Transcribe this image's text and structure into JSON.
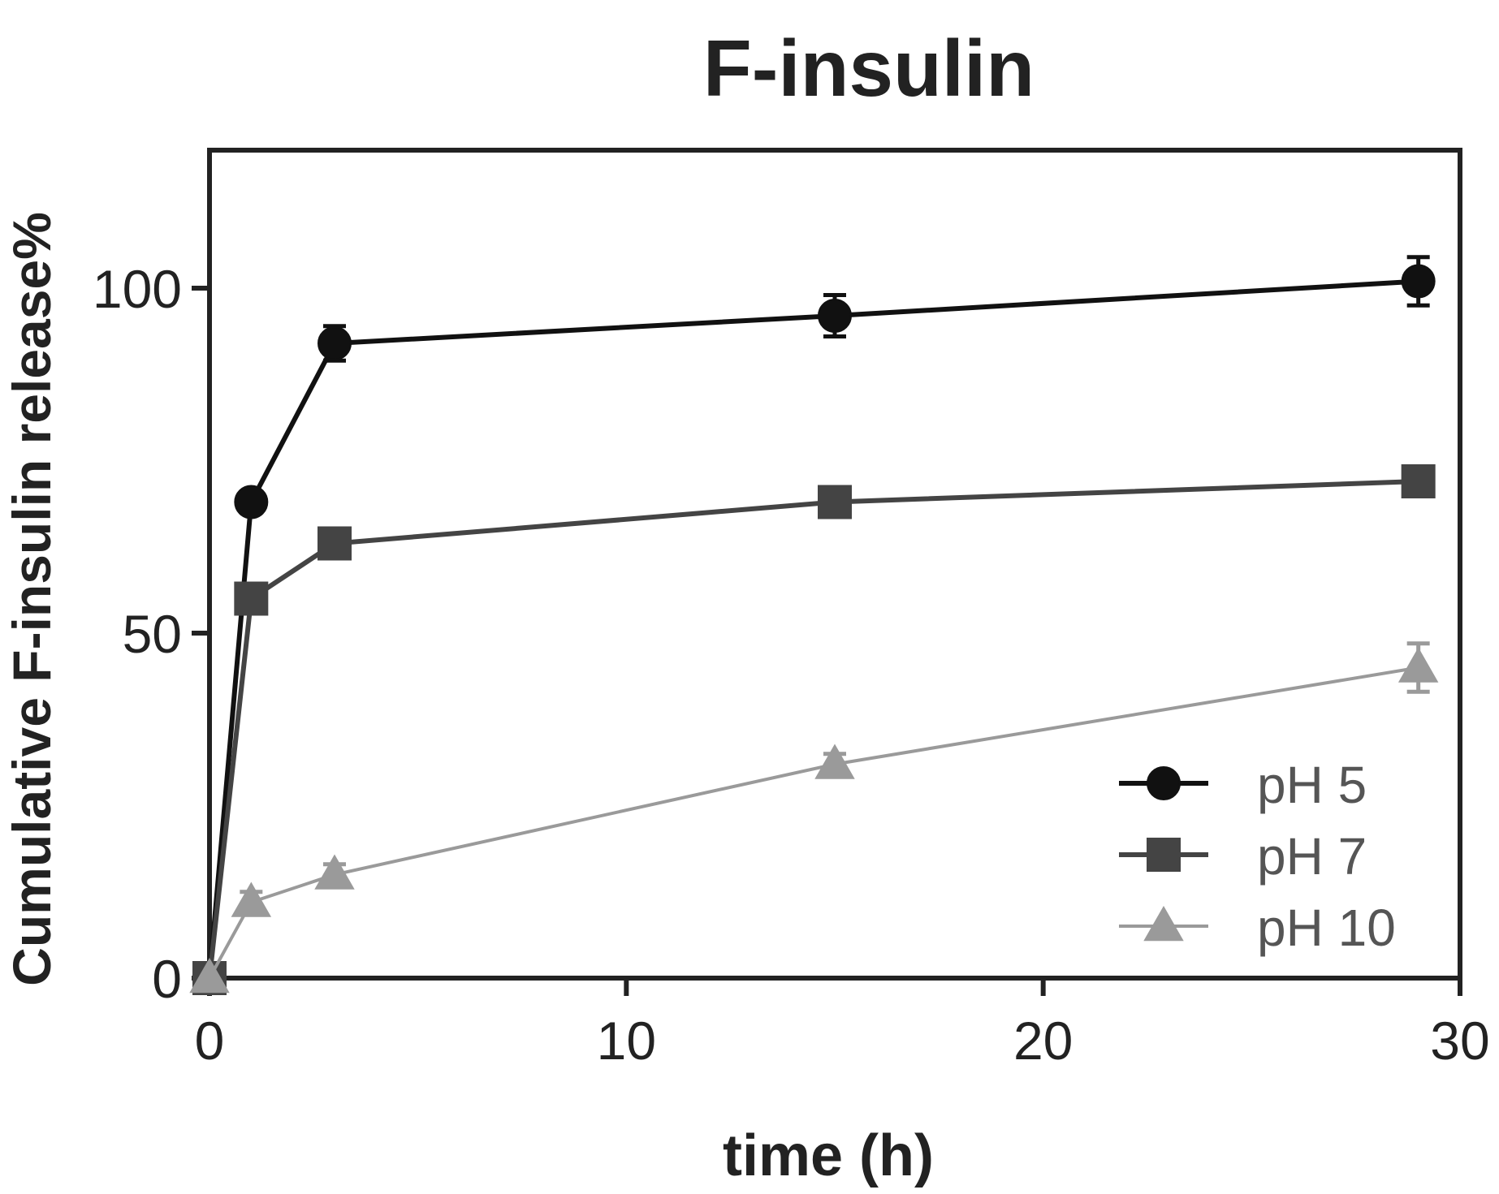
{
  "chart_data": {
    "type": "line",
    "title": "F-insulin",
    "xlabel": "time (h)",
    "ylabel": "Cumulative F-insulin release%",
    "xlim": [
      0,
      30
    ],
    "ylim": [
      0,
      120
    ],
    "xticks": [
      0,
      10,
      20,
      30
    ],
    "yticks": [
      0,
      50,
      100
    ],
    "grid": false,
    "legend_position": "bottom-right",
    "series": [
      {
        "name": "pH 5",
        "marker": "circle",
        "color": "#111111",
        "points": [
          {
            "x": 0,
            "y": 0,
            "err": 0
          },
          {
            "x": 1,
            "y": 69,
            "err": 1.5
          },
          {
            "x": 3,
            "y": 92,
            "err": 2.5
          },
          {
            "x": 15,
            "y": 96,
            "err": 3
          },
          {
            "x": 29,
            "y": 101,
            "err": 3.5
          }
        ]
      },
      {
        "name": "pH 7",
        "marker": "square",
        "color": "#444444",
        "points": [
          {
            "x": 0,
            "y": 0,
            "err": 0
          },
          {
            "x": 1,
            "y": 55,
            "err": 2
          },
          {
            "x": 3,
            "y": 63,
            "err": 1.5
          },
          {
            "x": 15,
            "y": 69,
            "err": 1.5
          },
          {
            "x": 29,
            "y": 72,
            "err": 1.5
          }
        ]
      },
      {
        "name": "pH 10",
        "marker": "triangle",
        "color": "#9a9a9a",
        "points": [
          {
            "x": 0,
            "y": 0,
            "err": 0
          },
          {
            "x": 1,
            "y": 11,
            "err": 1.5
          },
          {
            "x": 3,
            "y": 15,
            "err": 1.5
          },
          {
            "x": 15,
            "y": 31,
            "err": 1.5
          },
          {
            "x": 29,
            "y": 45,
            "err": 3.5
          }
        ]
      }
    ]
  }
}
